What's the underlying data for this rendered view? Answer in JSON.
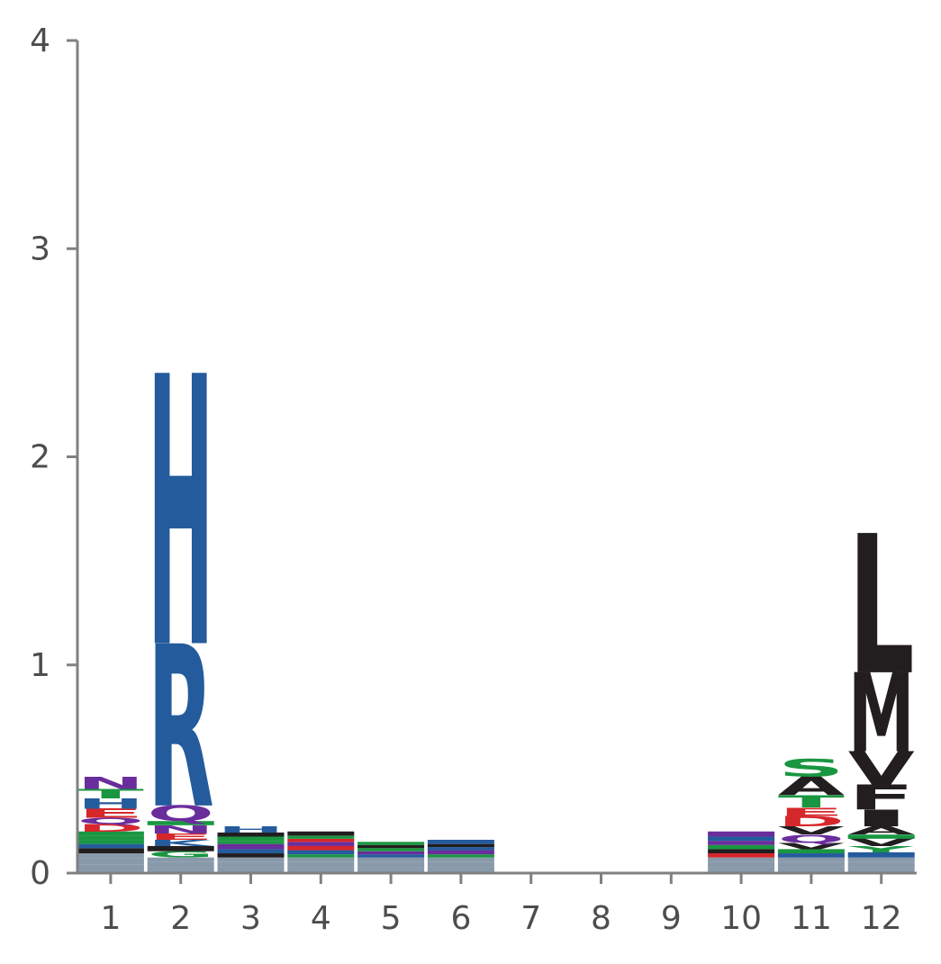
{
  "chart_data": {
    "type": "sequence-logo",
    "title": "",
    "xlabel": "",
    "ylabel": "",
    "ylim": [
      0,
      4
    ],
    "y_ticks": [
      "0",
      "1",
      "2",
      "3",
      "4"
    ],
    "positions": [
      "1",
      "2",
      "3",
      "4",
      "5",
      "6",
      "7",
      "8",
      "9",
      "10",
      "11",
      "12"
    ],
    "colors": {
      "basic": "#245b9c",
      "acidic": "#d6272b",
      "polar": "#1a9641",
      "hydrophobic": "#221e1f",
      "amide": "#6a2d9c",
      "faint": "#8899aa"
    },
    "residue_class": {
      "H": "basic",
      "R": "basic",
      "K": "basic",
      "D": "acidic",
      "E": "acidic",
      "S": "polar",
      "T": "polar",
      "G": "polar",
      "Y": "polar",
      "C": "polar",
      "N": "amide",
      "Q": "amide",
      "L": "hydrophobic",
      "M": "hydrophobic",
      "V": "hydrophobic",
      "F": "hydrophobic",
      "I": "hydrophobic",
      "A": "hydrophobic",
      "W": "hydrophobic",
      "P": "hydrophobic"
    },
    "stacks": [
      [
        [
          "x",
          0.04
        ],
        [
          "x",
          0.03
        ],
        [
          "x",
          0.025
        ],
        [
          "V",
          0.025
        ],
        [
          "K",
          0.02
        ],
        [
          "G",
          0.018
        ],
        [
          "Y",
          0.022
        ],
        [
          "S",
          0.02
        ],
        [
          "D",
          0.035
        ],
        [
          "Q",
          0.03
        ],
        [
          "E",
          0.045
        ],
        [
          "H",
          0.05
        ],
        [
          "T",
          0.045
        ],
        [
          "N",
          0.06
        ]
      ],
      [
        [
          "x",
          0.03
        ],
        [
          "x",
          0.025
        ],
        [
          "x",
          0.02
        ],
        [
          "G",
          0.03
        ],
        [
          "V",
          0.025
        ],
        [
          "K",
          0.03
        ],
        [
          "E",
          0.03
        ],
        [
          "N",
          0.04
        ],
        [
          "S",
          0.02
        ],
        [
          "Q",
          0.075
        ],
        [
          "R",
          0.78
        ],
        [
          "H",
          1.3
        ]
      ],
      [
        [
          "x",
          0.03
        ],
        [
          "x",
          0.025
        ],
        [
          "x",
          0.02
        ],
        [
          "V",
          0.02
        ],
        [
          "K",
          0.02
        ],
        [
          "N",
          0.025
        ],
        [
          "S",
          0.015
        ],
        [
          "G",
          0.02
        ],
        [
          "F",
          0.02
        ],
        [
          "H",
          0.03
        ]
      ],
      [
        [
          "x",
          0.03
        ],
        [
          "x",
          0.025
        ],
        [
          "x",
          0.02
        ],
        [
          "G",
          0.015
        ],
        [
          "K",
          0.02
        ],
        [
          "D",
          0.02
        ],
        [
          "N",
          0.02
        ],
        [
          "E",
          0.015
        ],
        [
          "S",
          0.015
        ],
        [
          "F",
          0.02
        ]
      ],
      [
        [
          "x",
          0.03
        ],
        [
          "x",
          0.025
        ],
        [
          "x",
          0.02
        ],
        [
          "K",
          0.015
        ],
        [
          "N",
          0.015
        ],
        [
          "G",
          0.015
        ],
        [
          "V",
          0.015
        ],
        [
          "S",
          0.015
        ]
      ],
      [
        [
          "x",
          0.03
        ],
        [
          "x",
          0.025
        ],
        [
          "x",
          0.02
        ],
        [
          "G",
          0.015
        ],
        [
          "N",
          0.02
        ],
        [
          "K",
          0.015
        ],
        [
          "V",
          0.015
        ],
        [
          "H",
          0.02
        ]
      ],
      [],
      [],
      [],
      [
        [
          "x",
          0.03
        ],
        [
          "x",
          0.025
        ],
        [
          "x",
          0.02
        ],
        [
          "D",
          0.02
        ],
        [
          "V",
          0.02
        ],
        [
          "S",
          0.02
        ],
        [
          "N",
          0.02
        ],
        [
          "K",
          0.02
        ],
        [
          "Q",
          0.025
        ]
      ],
      [
        [
          "x",
          0.03
        ],
        [
          "x",
          0.025
        ],
        [
          "x",
          0.02
        ],
        [
          "K",
          0.02
        ],
        [
          "S",
          0.02
        ],
        [
          "V",
          0.03
        ],
        [
          "Q",
          0.04
        ],
        [
          "V",
          0.04
        ],
        [
          "D",
          0.05
        ],
        [
          "E",
          0.04
        ],
        [
          "T",
          0.06
        ],
        [
          "A",
          0.09
        ],
        [
          "S",
          0.085
        ]
      ],
      [
        [
          "x",
          0.03
        ],
        [
          "x",
          0.025
        ],
        [
          "x",
          0.02
        ],
        [
          "K",
          0.025
        ],
        [
          "Y",
          0.03
        ],
        [
          "V",
          0.035
        ],
        [
          "G",
          0.02
        ],
        [
          "A",
          0.04
        ],
        [
          "I",
          0.08
        ],
        [
          "F",
          0.12
        ],
        [
          "V",
          0.16
        ],
        [
          "M",
          0.38
        ],
        [
          "L",
          0.67
        ]
      ]
    ]
  }
}
